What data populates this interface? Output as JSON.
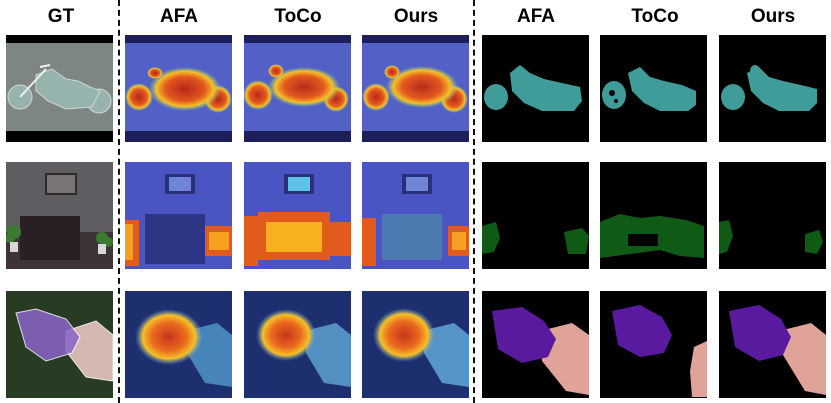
{
  "headers": [
    "GT",
    "AFA",
    "ToCo",
    "Ours",
    "AFA",
    "ToCo",
    "Ours"
  ],
  "colors": {
    "cam_bg": "#4a56c9",
    "cam_hot": "#e0261a",
    "cam_warm": "#f5b21c",
    "seg_bike": "#3f9c98",
    "seg_plant": "#0f5a14",
    "seg_cat": "#5a1aa0",
    "seg_person": "#e0a39a"
  },
  "rows": [
    {
      "subject": "motorbike"
    },
    {
      "subject": "potted-plant"
    },
    {
      "subject": "cat-hand"
    }
  ]
}
